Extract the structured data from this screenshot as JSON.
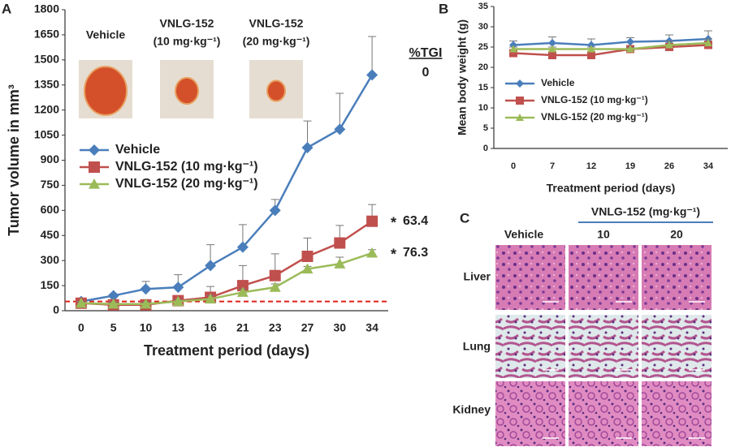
{
  "panel_labels": [
    "A",
    "B",
    "C"
  ],
  "chart_data": [
    {
      "type": "line",
      "x_label": "Treatment period (days)",
      "y_label": "Tumor volume in mm³",
      "categories": [
        "0",
        "5",
        "10",
        "13",
        "16",
        "21",
        "23",
        "27",
        "30",
        "34"
      ],
      "ylim": [
        0,
        1800
      ],
      "yticks": [
        0,
        150,
        300,
        450,
        600,
        750,
        900,
        1050,
        1200,
        1350,
        1500,
        1650,
        1800
      ],
      "reference_line": 55,
      "reference_color": "#e0201b",
      "tgi_title": "%TGI",
      "legend": "upper-left",
      "photo_labels": [
        [
          "Vehicle"
        ],
        [
          "VNLG-152",
          "(10 mg·kg⁻¹)"
        ],
        [
          "VNLG-152",
          "(20 mg·kg⁻¹)"
        ]
      ],
      "series": [
        {
          "name": "Vehicle",
          "color": "#4a7ebb",
          "marker": "diamond",
          "values": [
            55,
            90,
            130,
            140,
            270,
            380,
            600,
            975,
            1085,
            1410
          ],
          "errors": [
            10,
            10,
            45,
            75,
            125,
            135,
            65,
            160,
            215,
            230
          ],
          "tgi": 0
        },
        {
          "name": "VNLG-152 (10 mg·kg⁻¹)",
          "color": "#c0504d",
          "marker": "square",
          "values": [
            45,
            35,
            35,
            60,
            80,
            150,
            210,
            325,
            405,
            535
          ],
          "errors": [
            10,
            10,
            10,
            15,
            65,
            120,
            130,
            110,
            105,
            100
          ],
          "tgi": 63.4,
          "significance": "*"
        },
        {
          "name": "VNLG-152 (20 mg·kg⁻¹)",
          "color": "#9bbb59",
          "marker": "triangle",
          "values": [
            45,
            40,
            40,
            55,
            70,
            110,
            140,
            250,
            280,
            345
          ],
          "errors": [
            10,
            10,
            10,
            10,
            20,
            20,
            20,
            15,
            40,
            20
          ],
          "tgi": 76.3,
          "significance": "*"
        }
      ]
    },
    {
      "type": "line",
      "x_label": "Treatment period (days)",
      "y_label": "Mean body weight (g)",
      "categories": [
        "0",
        "7",
        "12",
        "19",
        "26",
        "34"
      ],
      "ylim": [
        0,
        35
      ],
      "yticks": [
        0,
        5,
        10,
        15,
        20,
        25,
        30,
        35
      ],
      "legend": "center-left",
      "series": [
        {
          "name": "Vehicle",
          "color": "#4a7ebb",
          "marker": "diamond",
          "values": [
            25.5,
            26,
            25.5,
            26.3,
            26.5,
            27
          ],
          "errors": [
            1,
            1.5,
            1.5,
            1,
            1.5,
            2
          ]
        },
        {
          "name": "VNLG-152 (10 mg·kg⁻¹)",
          "color": "#c0504d",
          "marker": "square",
          "values": [
            23.5,
            23,
            23,
            24.5,
            25,
            25.5
          ],
          "errors": [
            0.5,
            0.5,
            0.5,
            0.5,
            1,
            1
          ]
        },
        {
          "name": "VNLG-152 (20 mg·kg⁻¹)",
          "color": "#9bbb59",
          "marker": "triangle",
          "values": [
            24.5,
            24.5,
            24.5,
            24.5,
            25.5,
            26
          ],
          "errors": [
            0.5,
            0.5,
            0.5,
            0.5,
            1,
            1
          ]
        }
      ]
    }
  ],
  "panel_c": {
    "header": "VNLG-152 (mg·kg⁻¹)",
    "columns": [
      "Vehicle",
      "10",
      "20"
    ],
    "rows": [
      "Liver",
      "Lung",
      "Kidney"
    ]
  }
}
